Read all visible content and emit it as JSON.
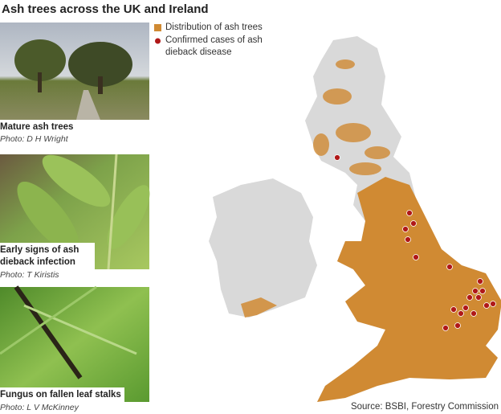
{
  "header": {
    "title": "Ash trees across the UK and Ireland"
  },
  "legend": {
    "items": [
      "Distribution of ash trees",
      "Confirmed cases of ash dieback disease"
    ]
  },
  "photos": [
    {
      "caption": "Mature ash trees",
      "credit": "Photo: D H Wright"
    },
    {
      "caption": "Early signs of ash dieback infection",
      "credit": "Photo: T Kiristis"
    },
    {
      "caption": "Fungus on fallen leaf stalks",
      "credit": "Photo:  L V McKinney"
    }
  ],
  "source": "Source: BSBI, Forestry Commission"
}
